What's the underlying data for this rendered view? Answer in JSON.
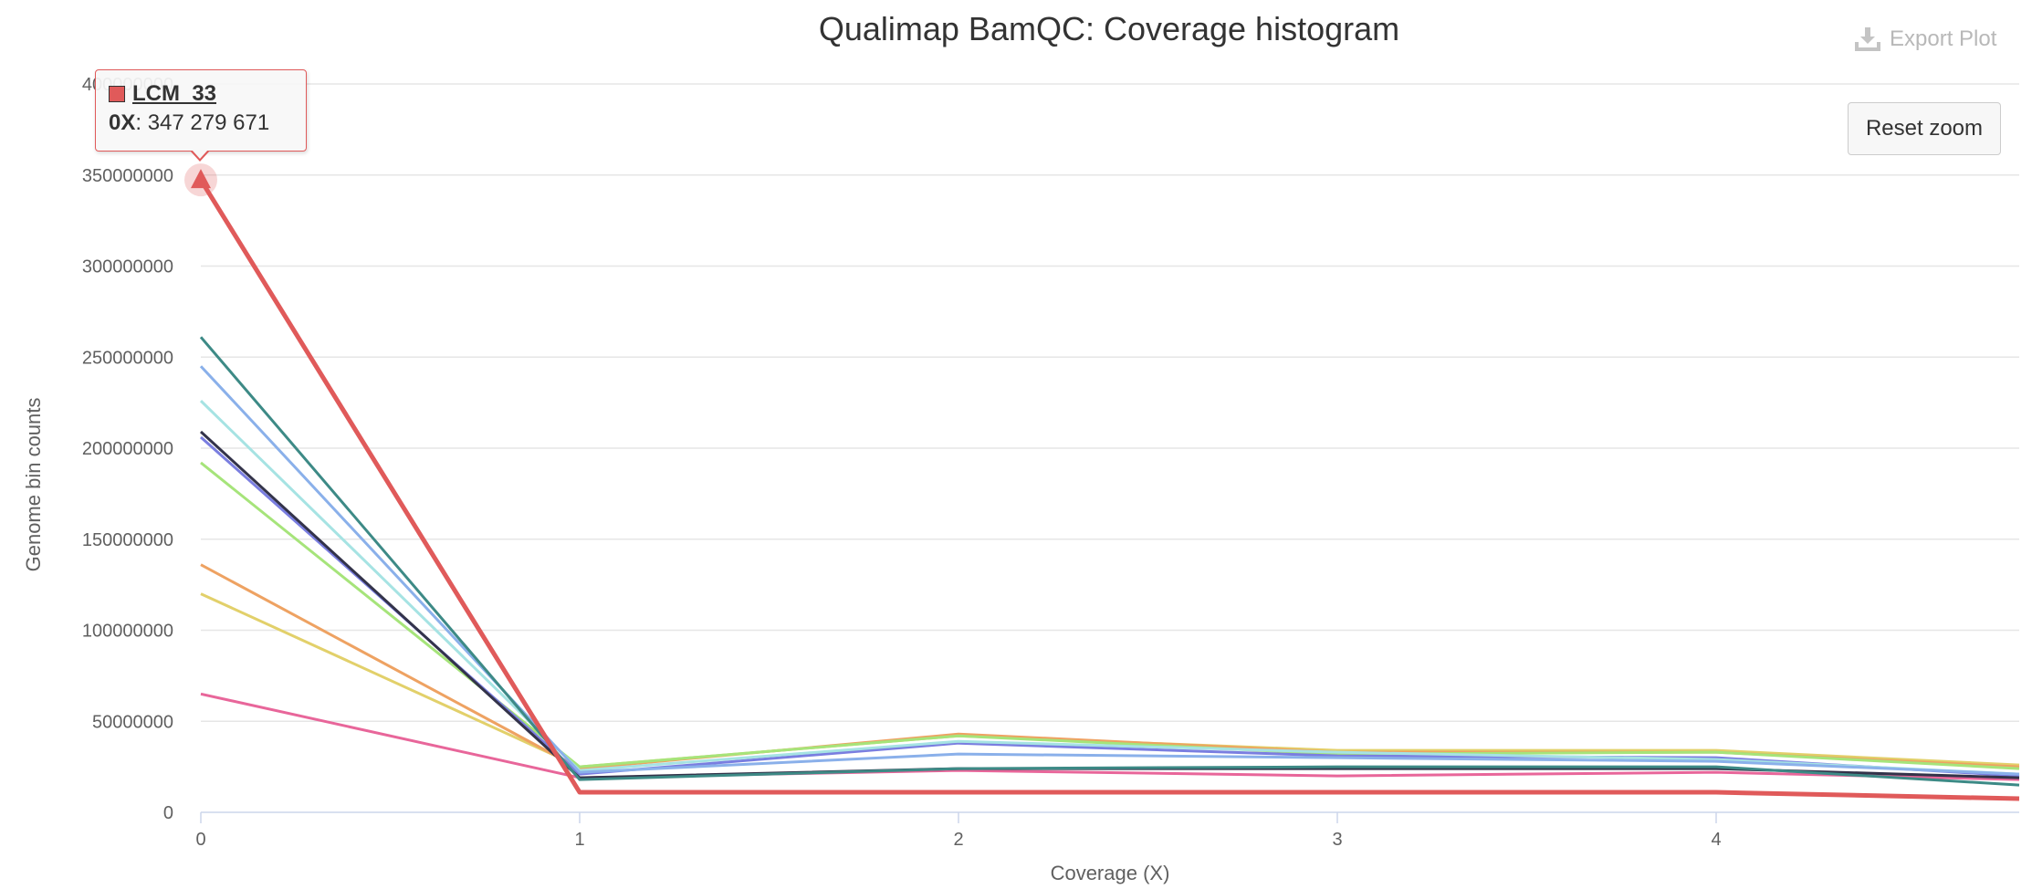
{
  "chart_data": {
    "type": "line",
    "title": "Qualimap BamQC: Coverage histogram",
    "xlabel": "Coverage (X)",
    "ylabel": "Genome bin counts",
    "x": [
      0,
      1,
      2,
      3,
      4,
      4.8
    ],
    "xticks": [
      "0",
      "1",
      "2",
      "3",
      "4"
    ],
    "xlim": [
      0,
      4.8
    ],
    "ylim": [
      0,
      400000000
    ],
    "yticks": [
      "0",
      "50000000",
      "100000000",
      "150000000",
      "200000000",
      "250000000",
      "300000000",
      "350000000",
      "400000000"
    ],
    "grid": true,
    "series": [
      {
        "color": "#e8669a",
        "values": [
          65000000,
          19000000,
          23000000,
          20000000,
          22000000,
          18000000
        ]
      },
      {
        "color": "#e2d06a",
        "values": [
          120000000,
          25000000,
          42000000,
          34000000,
          34000000,
          26000000
        ]
      },
      {
        "color": "#eea262",
        "values": [
          136000000,
          24000000,
          43000000,
          33000000,
          33000000,
          25000000
        ]
      },
      {
        "color": "#a6e47a",
        "values": [
          192000000,
          25000000,
          42000000,
          32000000,
          33000000,
          24000000
        ]
      },
      {
        "color": "#7a7ee0",
        "values": [
          206000000,
          21000000,
          38000000,
          31000000,
          30000000,
          20000000
        ]
      },
      {
        "color": "#33334a",
        "values": [
          209000000,
          19000000,
          24000000,
          24000000,
          24000000,
          19000000
        ]
      },
      {
        "color": "#a6e3e3",
        "values": [
          226000000,
          23000000,
          39000000,
          33000000,
          29000000,
          21000000
        ]
      },
      {
        "color": "#8ab0ea",
        "values": [
          245000000,
          22000000,
          32000000,
          30000000,
          28000000,
          21000000
        ]
      },
      {
        "color": "#3d8a86",
        "values": [
          261000000,
          18000000,
          24000000,
          25000000,
          25000000,
          15000000
        ]
      },
      {
        "color": "#e05a5a",
        "values": [
          347279671,
          11000000,
          11000000,
          11000000,
          11000000,
          7500000
        ],
        "thick": true
      }
    ]
  },
  "tooltip": {
    "series_name": "LCM_33",
    "x_label": "0X",
    "value_text": ": 347 279 671",
    "color": "#e05a5a"
  },
  "buttons": {
    "export_label": "Export Plot",
    "export_icon": "download-icon",
    "reset_label": "Reset zoom"
  }
}
